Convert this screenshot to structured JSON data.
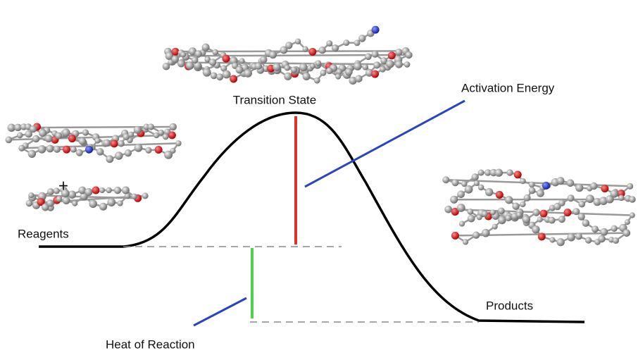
{
  "labels": {
    "transition_state": "Transition State",
    "activation_energy": "Activation Energy",
    "reagents": "Reagents",
    "products": "Products",
    "heat_of_reaction": "Heat of Reaction",
    "plus": "+"
  }
}
